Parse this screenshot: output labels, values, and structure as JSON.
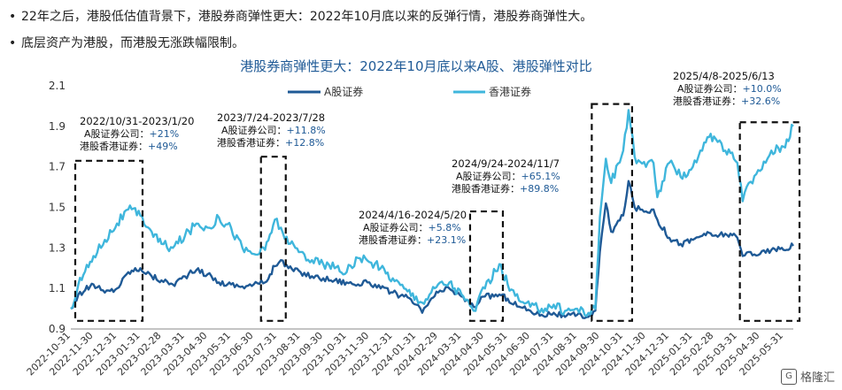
{
  "bullets": [
    "22年之后，港股低估值背景下，港股券商弹性更大：2022年10月底以来的反弹行情，港股券商弹性大。",
    "底层资产为港股，而港股无涨跌幅限制。"
  ],
  "watermark": {
    "icon": "G",
    "text": "格隆汇"
  },
  "colors": {
    "a_share": "#1f5a96",
    "hk": "#3fb6dc",
    "title": "#1f5a96",
    "pos": "#1f5a96",
    "box": "#111111"
  },
  "chart_data": {
    "type": "line",
    "title": "港股券商弹性更大：2022年10月底以来A股、港股弹性对比",
    "ylim": [
      0.9,
      2.1
    ],
    "yticks": [
      "0.9",
      "1.1",
      "1.3",
      "1.5",
      "1.7",
      "1.9",
      "2.1"
    ],
    "x_start": "2022-10-31",
    "x_end": "2025-06-13",
    "xticks": [
      "2022-10-31",
      "2022-11-30",
      "2022-12-31",
      "2023-01-31",
      "2023-02-28",
      "2023-03-31",
      "2023-04-30",
      "2023-05-31",
      "2023-06-30",
      "2023-07-31",
      "2023-08-31",
      "2023-09-30",
      "2023-10-31",
      "2023-11-30",
      "2023-12-31",
      "2024-01-31",
      "2024-02-29",
      "2024-03-31",
      "2024-04-30",
      "2024-05-31",
      "2024-06-30",
      "2024-07-31",
      "2024-08-31",
      "2024-09-30",
      "2024-10-31",
      "2024-11-30",
      "2024-12-31",
      "2025-01-31",
      "2025-02-28",
      "2025-03-31",
      "2025-04-30",
      "2025-05-31"
    ],
    "series": [
      {
        "name": "A股证券",
        "color": "#1f5a96",
        "points": [
          [
            "2022-10-31",
            1.0
          ],
          [
            "2022-11-10",
            1.07
          ],
          [
            "2022-11-30",
            1.12
          ],
          [
            "2022-12-15",
            1.08
          ],
          [
            "2022-12-31",
            1.1
          ],
          [
            "2023-01-15",
            1.18
          ],
          [
            "2023-01-31",
            1.2
          ],
          [
            "2023-02-15",
            1.16
          ],
          [
            "2023-02-28",
            1.14
          ],
          [
            "2023-03-15",
            1.12
          ],
          [
            "2023-03-31",
            1.16
          ],
          [
            "2023-04-15",
            1.19
          ],
          [
            "2023-04-30",
            1.17
          ],
          [
            "2023-05-15",
            1.13
          ],
          [
            "2023-05-31",
            1.12
          ],
          [
            "2023-06-15",
            1.11
          ],
          [
            "2023-06-30",
            1.12
          ],
          [
            "2023-07-15",
            1.13
          ],
          [
            "2023-07-28",
            1.21
          ],
          [
            "2023-08-05",
            1.24
          ],
          [
            "2023-08-15",
            1.2
          ],
          [
            "2023-08-31",
            1.18
          ],
          [
            "2023-09-15",
            1.16
          ],
          [
            "2023-09-30",
            1.15
          ],
          [
            "2023-10-15",
            1.14
          ],
          [
            "2023-10-31",
            1.13
          ],
          [
            "2023-11-15",
            1.12
          ],
          [
            "2023-11-30",
            1.13
          ],
          [
            "2023-12-15",
            1.1
          ],
          [
            "2023-12-31",
            1.08
          ],
          [
            "2024-01-15",
            1.06
          ],
          [
            "2024-01-31",
            1.02
          ],
          [
            "2024-02-08",
            0.98
          ],
          [
            "2024-02-20",
            1.05
          ],
          [
            "2024-02-29",
            1.08
          ],
          [
            "2024-03-15",
            1.1
          ],
          [
            "2024-03-31",
            1.06
          ],
          [
            "2024-04-16",
            1.01
          ],
          [
            "2024-05-01",
            1.06
          ],
          [
            "2024-05-20",
            1.07
          ],
          [
            "2024-05-31",
            1.05
          ],
          [
            "2024-06-15",
            1.01
          ],
          [
            "2024-06-30",
            0.99
          ],
          [
            "2024-07-15",
            0.97
          ],
          [
            "2024-07-31",
            0.98
          ],
          [
            "2024-08-15",
            0.96
          ],
          [
            "2024-08-31",
            0.97
          ],
          [
            "2024-09-15",
            0.96
          ],
          [
            "2024-09-24",
            0.99
          ],
          [
            "2024-09-30",
            1.28
          ],
          [
            "2024-10-08",
            1.52
          ],
          [
            "2024-10-15",
            1.38
          ],
          [
            "2024-10-31",
            1.46
          ],
          [
            "2024-11-07",
            1.63
          ],
          [
            "2024-11-15",
            1.5
          ],
          [
            "2024-11-30",
            1.48
          ],
          [
            "2024-12-10",
            1.49
          ],
          [
            "2024-12-15",
            1.44
          ],
          [
            "2024-12-31",
            1.35
          ],
          [
            "2025-01-15",
            1.32
          ],
          [
            "2025-01-31",
            1.34
          ],
          [
            "2025-02-15",
            1.37
          ],
          [
            "2025-02-28",
            1.36
          ],
          [
            "2025-03-15",
            1.37
          ],
          [
            "2025-03-31",
            1.35
          ],
          [
            "2025-04-07",
            1.26
          ],
          [
            "2025-04-15",
            1.28
          ],
          [
            "2025-04-30",
            1.27
          ],
          [
            "2025-05-15",
            1.29
          ],
          [
            "2025-05-31",
            1.29
          ],
          [
            "2025-06-13",
            1.31
          ]
        ]
      },
      {
        "name": "香港证券",
        "color": "#3fb6dc",
        "points": [
          [
            "2022-10-31",
            1.0
          ],
          [
            "2022-11-10",
            1.12
          ],
          [
            "2022-11-30",
            1.26
          ],
          [
            "2022-12-15",
            1.34
          ],
          [
            "2022-12-31",
            1.42
          ],
          [
            "2023-01-15",
            1.49
          ],
          [
            "2023-01-31",
            1.46
          ],
          [
            "2023-02-15",
            1.38
          ],
          [
            "2023-02-28",
            1.32
          ],
          [
            "2023-03-15",
            1.3
          ],
          [
            "2023-03-31",
            1.36
          ],
          [
            "2023-04-15",
            1.42
          ],
          [
            "2023-04-30",
            1.4
          ],
          [
            "2023-05-15",
            1.45
          ],
          [
            "2023-05-31",
            1.4
          ],
          [
            "2023-06-15",
            1.3
          ],
          [
            "2023-06-30",
            1.27
          ],
          [
            "2023-07-15",
            1.29
          ],
          [
            "2023-07-28",
            1.44
          ],
          [
            "2023-08-05",
            1.4
          ],
          [
            "2023-08-15",
            1.32
          ],
          [
            "2023-08-31",
            1.28
          ],
          [
            "2023-09-15",
            1.24
          ],
          [
            "2023-09-30",
            1.22
          ],
          [
            "2023-10-15",
            1.2
          ],
          [
            "2023-10-31",
            1.18
          ],
          [
            "2023-11-15",
            1.25
          ],
          [
            "2023-11-30",
            1.23
          ],
          [
            "2023-12-15",
            1.2
          ],
          [
            "2023-12-31",
            1.15
          ],
          [
            "2024-01-15",
            1.1
          ],
          [
            "2024-01-31",
            1.06
          ],
          [
            "2024-02-08",
            1.03
          ],
          [
            "2024-02-20",
            1.08
          ],
          [
            "2024-02-29",
            1.12
          ],
          [
            "2024-03-15",
            1.13
          ],
          [
            "2024-03-31",
            1.07
          ],
          [
            "2024-04-16",
            0.99
          ],
          [
            "2024-05-01",
            1.1
          ],
          [
            "2024-05-20",
            1.22
          ],
          [
            "2024-05-31",
            1.12
          ],
          [
            "2024-06-15",
            1.04
          ],
          [
            "2024-06-30",
            1.01
          ],
          [
            "2024-07-15",
            1.0
          ],
          [
            "2024-07-31",
            1.02
          ],
          [
            "2024-08-15",
            0.99
          ],
          [
            "2024-08-31",
            1.0
          ],
          [
            "2024-09-15",
            0.98
          ],
          [
            "2024-09-24",
            1.0
          ],
          [
            "2024-09-30",
            1.45
          ],
          [
            "2024-10-08",
            1.74
          ],
          [
            "2024-10-15",
            1.62
          ],
          [
            "2024-10-31",
            1.78
          ],
          [
            "2024-11-07",
            1.98
          ],
          [
            "2024-11-15",
            1.75
          ],
          [
            "2024-11-30",
            1.7
          ],
          [
            "2024-12-10",
            1.72
          ],
          [
            "2024-12-15",
            1.55
          ],
          [
            "2024-12-31",
            1.72
          ],
          [
            "2025-01-15",
            1.65
          ],
          [
            "2025-01-31",
            1.7
          ],
          [
            "2025-02-15",
            1.82
          ],
          [
            "2025-02-28",
            1.85
          ],
          [
            "2025-03-15",
            1.78
          ],
          [
            "2025-03-31",
            1.72
          ],
          [
            "2025-04-07",
            1.53
          ],
          [
            "2025-04-15",
            1.62
          ],
          [
            "2025-04-30",
            1.68
          ],
          [
            "2025-05-15",
            1.78
          ],
          [
            "2025-05-31",
            1.8
          ],
          [
            "2025-06-13",
            1.9
          ]
        ]
      }
    ],
    "annotations": [
      {
        "period": "2022/10/31-2023/1/20",
        "start": "2022-10-31",
        "end": "2023-01-20",
        "a_label": "A股证券公司：",
        "a_value": "+21%",
        "hk_label": "港股香港证券：",
        "hk_value": "+49%"
      },
      {
        "period": "2023/7/24-2023/7/28",
        "start": "2023-07-24",
        "end": "2023-07-28",
        "a_label": "A股证券公司：",
        "a_value": "+11.8%",
        "hk_label": "港股香港证券：",
        "hk_value": "+12.8%"
      },
      {
        "period": "2024/4/16-2024/5/20",
        "start": "2024-04-16",
        "end": "2024-05-20",
        "a_label": "A股证券公司：",
        "a_value": "+5.8%",
        "hk_label": "港股香港证券：",
        "hk_value": "+23.1%"
      },
      {
        "period": "2024/9/24-2024/11/7",
        "start": "2024-09-24",
        "end": "2024-11-07",
        "a_label": "A股证券公司：",
        "a_value": "+65.1%",
        "hk_label": "港股香港证券：",
        "hk_value": "+89.8%"
      },
      {
        "period": "2025/4/8-2025/6/13",
        "start": "2025-04-08",
        "end": "2025-06-13",
        "a_label": "A股证券公司：",
        "a_value": "+10.0%",
        "hk_label": "港股香港证券：",
        "hk_value": "+32.6%"
      }
    ]
  }
}
